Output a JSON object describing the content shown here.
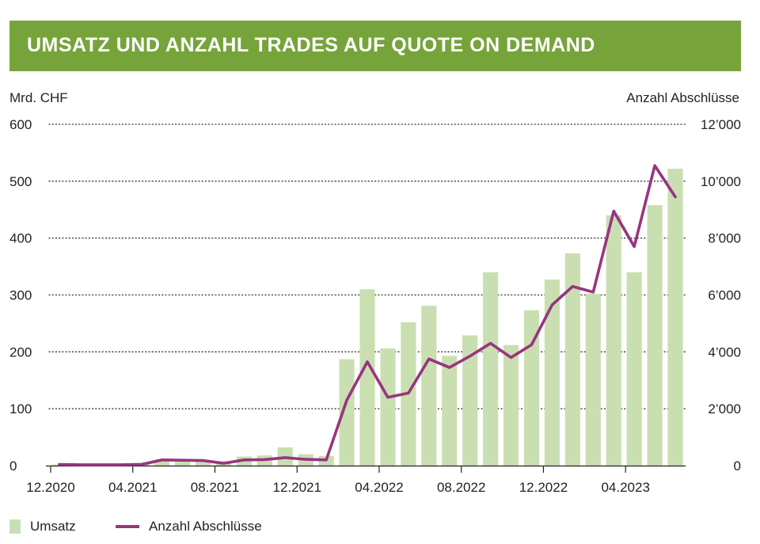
{
  "header": {
    "title": "UMSATZ UND ANZAHL TRADES AUF QUOTE ON DEMAND"
  },
  "colors": {
    "header_bg": "#76a43a",
    "bar": "#cadfb1",
    "line": "#97357f",
    "grid": "#333333"
  },
  "chart_data": {
    "type": "bar",
    "title": "UMSATZ UND ANZAHL TRADES AUF QUOTE ON DEMAND",
    "ylabel_left": "Mrd. CHF",
    "ylabel_right": "Anzahl Abschlüsse",
    "ylim_left": [
      0,
      600
    ],
    "ylim_right": [
      0,
      12000
    ],
    "yticks_left": [
      "0",
      "100",
      "200",
      "300",
      "400",
      "500",
      "600"
    ],
    "yticks_right": [
      "0",
      "2’000",
      "4’000",
      "6’000",
      "8’000",
      "10’000",
      "12’000"
    ],
    "x_tick_labels": [
      "12.2020",
      "04.2021",
      "08.2021",
      "12.2021",
      "04.2022",
      "08.2022",
      "12.2022",
      "04.2023"
    ],
    "grid": "horizontal dotted",
    "legend_position": "bottom-left",
    "categories": [
      "12.2020",
      "01.2021",
      "02.2021",
      "03.2021",
      "04.2021",
      "05.2021",
      "06.2021",
      "07.2021",
      "08.2021",
      "09.2021",
      "10.2021",
      "11.2021",
      "12.2021",
      "01.2022",
      "02.2022",
      "03.2022",
      "04.2022",
      "05.2022",
      "06.2022",
      "07.2022",
      "08.2022",
      "09.2022",
      "10.2022",
      "11.2022",
      "12.2022",
      "01.2023",
      "02.2023",
      "03.2023",
      "04.2023",
      "05.2023",
      "06.2023"
    ],
    "series": [
      {
        "name": "Umsatz",
        "type": "bar",
        "axis": "left",
        "values": [
          2,
          2,
          2,
          3,
          5,
          9,
          10,
          10,
          8,
          16,
          18,
          32,
          20,
          17,
          187,
          310,
          206,
          252,
          281,
          193,
          229,
          340,
          212,
          273,
          327,
          373,
          302,
          440,
          340,
          458,
          522
        ]
      },
      {
        "name": "Anzahl Abschlüsse",
        "type": "line",
        "axis": "right",
        "values": [
          40,
          30,
          30,
          30,
          40,
          200,
          190,
          180,
          80,
          200,
          210,
          280,
          220,
          200,
          2300,
          3650,
          2400,
          2550,
          3750,
          3450,
          3850,
          4300,
          3800,
          4250,
          5650,
          6300,
          6100,
          8950,
          7700,
          10550,
          9450
        ]
      }
    ]
  }
}
